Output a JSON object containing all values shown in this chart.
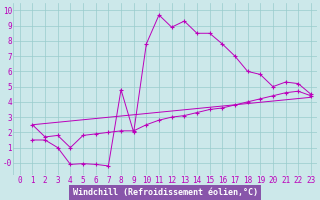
{
  "background_color": "#cce8ea",
  "grid_color": "#99cccc",
  "line_color": "#bb00bb",
  "xlim": [
    -0.5,
    23.5
  ],
  "ylim": [
    -0.8,
    10.5
  ],
  "xticks": [
    0,
    1,
    2,
    3,
    4,
    5,
    6,
    7,
    8,
    9,
    10,
    11,
    12,
    13,
    14,
    15,
    16,
    17,
    18,
    19,
    20,
    21,
    22,
    23
  ],
  "yticks": [
    0,
    1,
    2,
    3,
    4,
    5,
    6,
    7,
    8,
    9,
    10
  ],
  "ytick_labels": [
    "-0",
    "1",
    "2",
    "3",
    "4",
    "5",
    "6",
    "7",
    "8",
    "9",
    "10"
  ],
  "line1_x": [
    1,
    2,
    3,
    4,
    5,
    6,
    7,
    8,
    9,
    10,
    11,
    12,
    13,
    14,
    15,
    16,
    17,
    18,
    19,
    20,
    21,
    22,
    23
  ],
  "line1_y": [
    1.5,
    1.5,
    1.0,
    -0.1,
    -0.05,
    -0.1,
    -0.2,
    4.8,
    2.0,
    7.8,
    9.7,
    8.9,
    9.3,
    8.5,
    8.5,
    7.8,
    7.0,
    6.0,
    5.8,
    5.0,
    5.3,
    5.2,
    4.5
  ],
  "line2_x": [
    1,
    2,
    3,
    4,
    5,
    6,
    7,
    8,
    9,
    10,
    11,
    12,
    13,
    14,
    15,
    16,
    17,
    18,
    19,
    20,
    21,
    22,
    23
  ],
  "line2_y": [
    2.5,
    1.7,
    1.8,
    1.0,
    1.8,
    1.9,
    2.0,
    2.1,
    2.1,
    2.5,
    2.8,
    3.0,
    3.1,
    3.3,
    3.5,
    3.6,
    3.8,
    4.0,
    4.2,
    4.4,
    4.6,
    4.7,
    4.4
  ],
  "line3_x": [
    1,
    23
  ],
  "line3_y": [
    2.5,
    4.3
  ],
  "xlabel": "Windchill (Refroidissement éolien,°C)",
  "tick_fontsize": 5.5,
  "label_fontsize": 6.0,
  "xlabel_bg": "#aa44aa",
  "xlabel_fg": "#aa00aa"
}
